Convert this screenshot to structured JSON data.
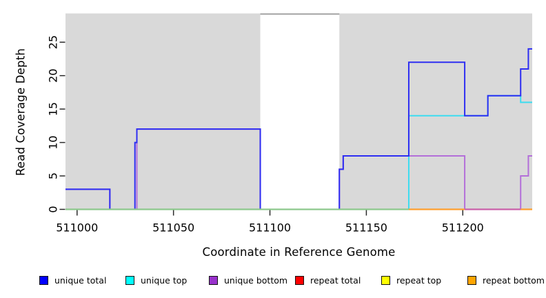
{
  "figure": {
    "background": "#ffffff",
    "plot_background": "#d9d9d9",
    "gap_band_color": "#ffffff",
    "gap_band_top_line_color": "#969696",
    "tick_color": "#2a2a2a",
    "text_color": "#000000"
  },
  "chart_data": {
    "type": "line",
    "style": "step",
    "title": "",
    "xlabel": "Coordinate in Reference Genome",
    "ylabel": "Read Coverage Depth",
    "xlim": [
      510994,
      511236
    ],
    "ylim": [
      0,
      29.3
    ],
    "x_ticks": [
      511000,
      511050,
      511100,
      511150,
      511200
    ],
    "y_ticks": [
      0,
      5,
      10,
      15,
      20,
      25
    ],
    "grid": "off",
    "legend_position": "bottom",
    "gap_region": {
      "x_start": 511095,
      "x_end": 511136
    },
    "series": [
      {
        "name": "repeat total",
        "color": "#e60000",
        "points": [
          [
            510994,
            0
          ]
        ]
      },
      {
        "name": "repeat top",
        "color": "#f2f200",
        "points": [
          [
            510994,
            0
          ]
        ]
      },
      {
        "name": "repeat bottom",
        "color": "#ff9f2e",
        "points": [
          [
            510994,
            0
          ]
        ]
      },
      {
        "name": "unique bottom",
        "color": "#b36fd9",
        "points": [
          [
            510994,
            3
          ],
          [
            511017,
            0
          ],
          [
            511031,
            12
          ],
          [
            511095,
            0
          ],
          [
            511136,
            6
          ],
          [
            511138,
            8
          ],
          [
            511201,
            0
          ],
          [
            511230,
            5
          ],
          [
            511234,
            8
          ]
        ]
      },
      {
        "name": "unique top",
        "color": "#3cdcf0",
        "points": [
          [
            510994,
            0
          ],
          [
            511172,
            14
          ],
          [
            511213,
            17
          ],
          [
            511230,
            16
          ]
        ]
      },
      {
        "name": "unique total",
        "color": "#2e2ef2",
        "points": [
          [
            510994,
            3
          ],
          [
            511017,
            0
          ],
          [
            511030,
            10
          ],
          [
            511031,
            12
          ],
          [
            511095,
            0
          ],
          [
            511136,
            6
          ],
          [
            511138,
            8
          ],
          [
            511172,
            22
          ],
          [
            511201,
            14
          ],
          [
            511213,
            17
          ],
          [
            511230,
            21
          ],
          [
            511234,
            24
          ]
        ]
      }
    ],
    "zero_line_segments": [
      {
        "x1": 510994,
        "x2": 511172,
        "color": "#8cc88c"
      },
      {
        "x1": 511172,
        "x2": 511201,
        "color": "#ff9f2e"
      },
      {
        "x1": 511201,
        "x2": 511230,
        "color": "#c95fa9"
      },
      {
        "x1": 511230,
        "x2": 511236,
        "color": "#ff9f2e"
      }
    ]
  },
  "legend": {
    "items": [
      {
        "label": "unique total",
        "color": "#0000ff"
      },
      {
        "label": "unique top",
        "color": "#00ffff"
      },
      {
        "label": "unique bottom",
        "color": "#9932cc"
      },
      {
        "label": "repeat total",
        "color": "#ff0000"
      },
      {
        "label": "repeat top",
        "color": "#ffff00"
      },
      {
        "label": "repeat bottom",
        "color": "#ffa500"
      }
    ]
  }
}
